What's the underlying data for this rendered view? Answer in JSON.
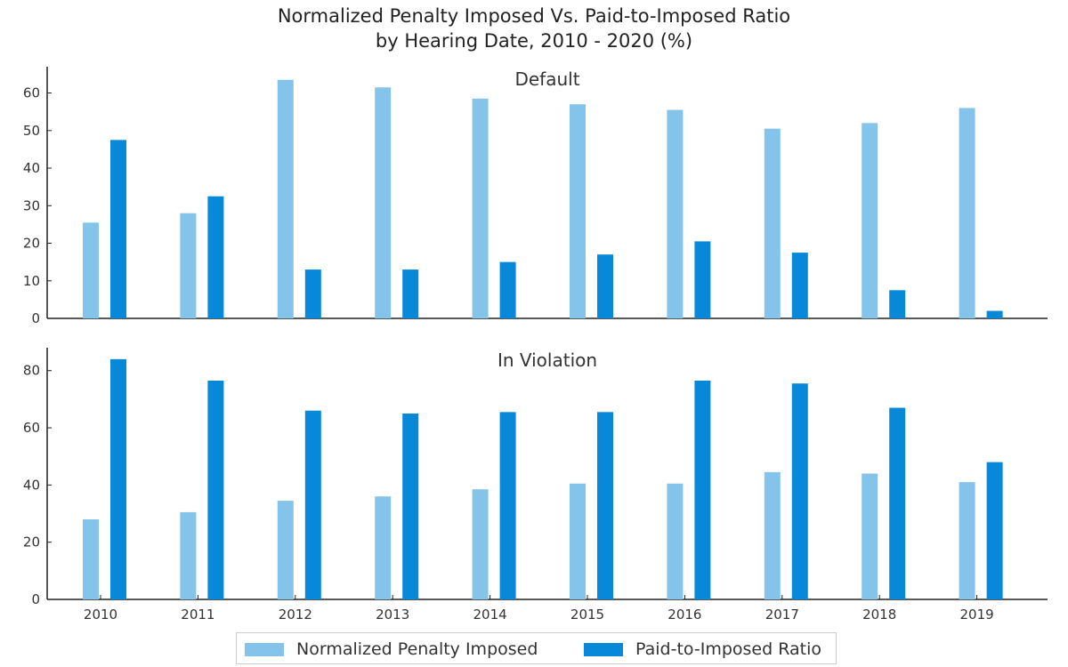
{
  "title": {
    "line1": "Normalized Penalty Imposed Vs. Paid-to-Imposed Ratio",
    "line2": "by Hearing Date, 2010 - 2020 (%)"
  },
  "legend": {
    "items": [
      {
        "label": "Normalized Penalty Imposed",
        "color": "#85c4ea"
      },
      {
        "label": "Paid-to-Imposed Ratio",
        "color": "#0788d8"
      }
    ]
  },
  "chart_data": [
    {
      "type": "bar",
      "title": "Default",
      "categories": [
        "2010",
        "2011",
        "2012",
        "2013",
        "2014",
        "2015",
        "2016",
        "2017",
        "2018",
        "2019"
      ],
      "series": [
        {
          "name": "Normalized Penalty Imposed",
          "color": "#85c4ea",
          "values": [
            25.5,
            28,
            63.5,
            61.5,
            58.5,
            57,
            55.5,
            50.5,
            52,
            56
          ]
        },
        {
          "name": "Paid-to-Imposed Ratio",
          "color": "#0788d8",
          "values": [
            47.5,
            32.5,
            13,
            13,
            15,
            17,
            20.5,
            17.5,
            7.5,
            2
          ]
        }
      ],
      "yticks": [
        0,
        10,
        20,
        30,
        40,
        50,
        60
      ],
      "ylim": [
        0,
        67
      ],
      "grid": false
    },
    {
      "type": "bar",
      "title": "In Violation",
      "categories": [
        "2010",
        "2011",
        "2012",
        "2013",
        "2014",
        "2015",
        "2016",
        "2017",
        "2018",
        "2019"
      ],
      "series": [
        {
          "name": "Normalized Penalty Imposed",
          "color": "#85c4ea",
          "values": [
            28,
            30.5,
            34.5,
            36,
            38.5,
            40.5,
            40.5,
            44.5,
            44,
            41
          ]
        },
        {
          "name": "Paid-to-Imposed Ratio",
          "color": "#0788d8",
          "values": [
            84,
            76.5,
            66,
            65,
            65.5,
            65.5,
            76.5,
            75.5,
            67,
            48
          ]
        }
      ],
      "yticks": [
        0,
        20,
        40,
        60,
        80
      ],
      "ylim": [
        0,
        88
      ],
      "grid": false
    }
  ]
}
